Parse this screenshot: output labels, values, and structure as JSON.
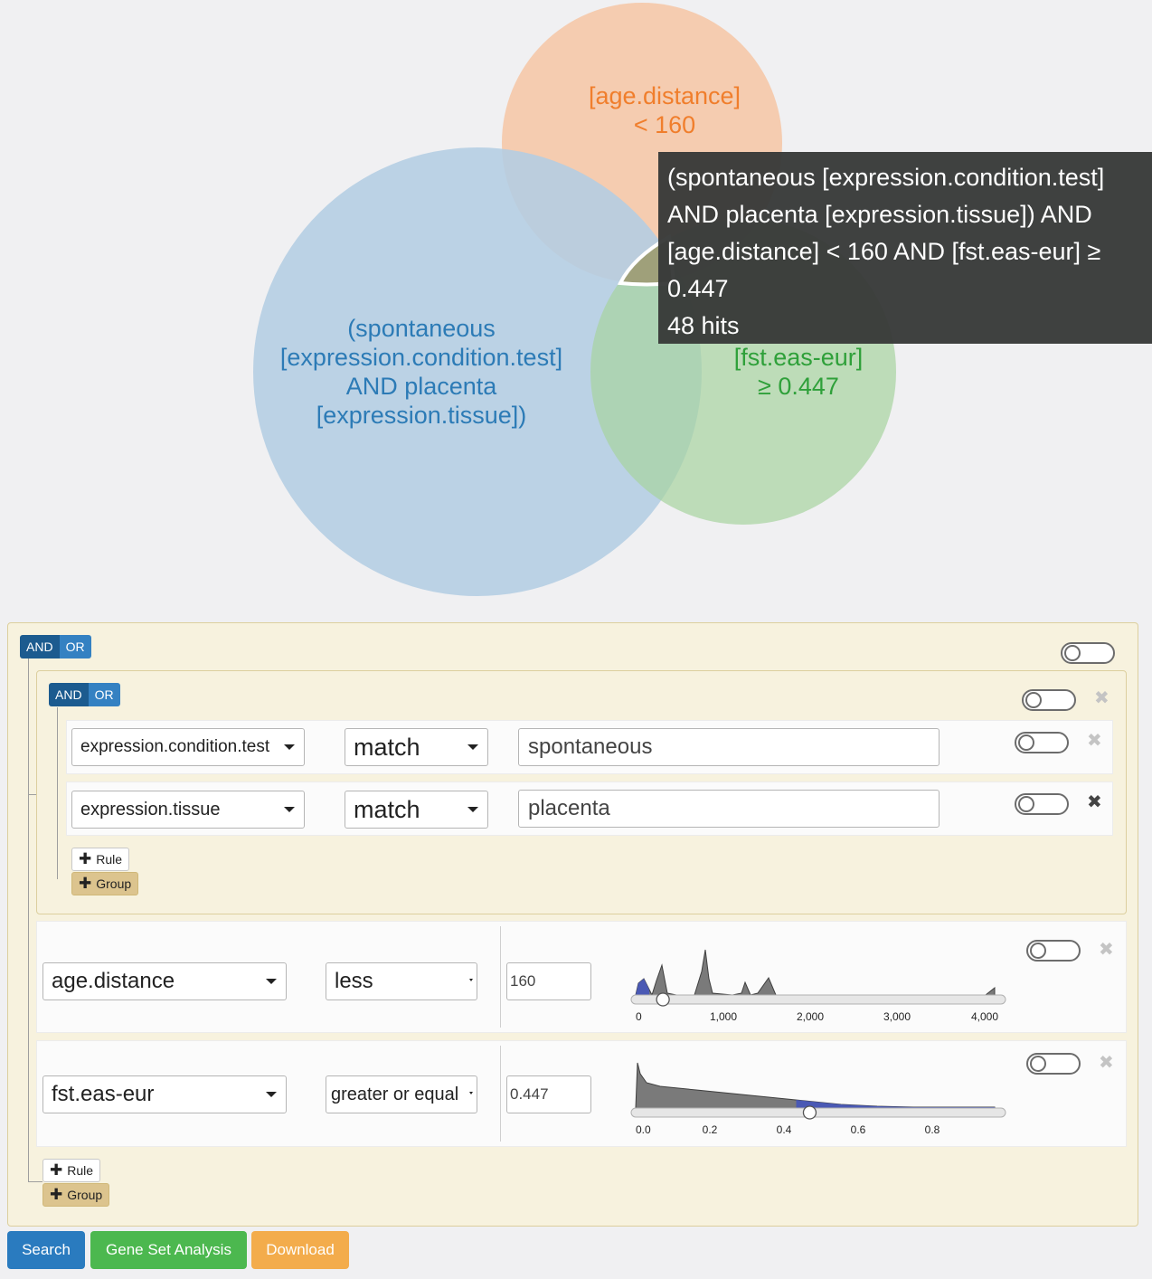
{
  "venn": {
    "age_label": [
      "[age.distance]",
      "< 160"
    ],
    "expr_label": [
      "(spontaneous",
      "[expression.condition.test]",
      "AND placenta",
      "[expression.tissue])"
    ],
    "fst_label": [
      "[fst.eas-eur]",
      "≥ 0.447"
    ],
    "colors": {
      "age": "#f6c6a4",
      "expr": "#b5d0e4",
      "fst": "#b8dcb4",
      "age_text": "#f07e2c",
      "expr_text": "#2c7bb6",
      "fst_text": "#2fa03a"
    },
    "tooltip": {
      "lines": [
        "(spontaneous [expression.condition.test]",
        "AND placenta [expression.tissue]) AND",
        "[age.distance] < 160 AND [fst.eas-eur] ≥",
        "0.447",
        "48 hits"
      ]
    }
  },
  "query": {
    "and_label": "AND",
    "or_label": "OR",
    "rule_label": "Rule",
    "group_label": "Group",
    "inner_rules": [
      {
        "field": "expression.condition.test",
        "operator": "match",
        "value": "spontaneous"
      },
      {
        "field": "expression.tissue",
        "operator": "match",
        "value": "placenta"
      }
    ],
    "range_rules": [
      {
        "field": "age.distance",
        "operator": "less",
        "value": "160",
        "ticks": [
          "0",
          "1,000",
          "2,000",
          "3,000",
          "4,000"
        ],
        "slider_position": 160,
        "slider_max": 4200
      },
      {
        "field": "fst.eas-eur",
        "operator": "greater or equal",
        "value": "0.447",
        "ticks": [
          "0.0",
          "0.2",
          "0.4",
          "0.6",
          "0.8"
        ],
        "slider_position": 0.447,
        "slider_max": 1.0
      }
    ]
  },
  "actions": {
    "search": "Search",
    "gene_set": "Gene Set Analysis",
    "download": "Download",
    "colors": {
      "search": "#2a7bbf",
      "gene_set": "#4cb84f",
      "download": "#f3ac4c"
    }
  }
}
